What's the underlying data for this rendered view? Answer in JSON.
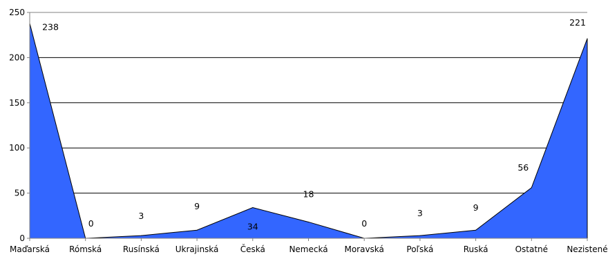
{
  "chart_data": {
    "type": "area",
    "categories": [
      "Maďarská",
      "Rómská",
      "Rusínská",
      "Ukrajinská",
      "Česká",
      "Nemecká",
      "Moravská",
      "Poľská",
      "Ruská",
      "Ostatné",
      "Nezistené"
    ],
    "series": [
      {
        "values": [
          238,
          0,
          3,
          9,
          34,
          18,
          0,
          3,
          9,
          56,
          221
        ]
      }
    ],
    "data_labels": [
      "238",
      "0",
      "3",
      "9",
      "34",
      "18",
      "0",
      "3",
      "9",
      "56",
      "221"
    ],
    "y_ticks": [
      0,
      50,
      100,
      150,
      200,
      250
    ],
    "ylim": [
      0,
      250
    ],
    "grid": true,
    "legend": "none",
    "title": "",
    "xlabel": "",
    "ylabel": "",
    "colors": {
      "fill": "#3366ff",
      "stroke": "#000000",
      "grid": "#000000",
      "axis": "#808080"
    }
  }
}
